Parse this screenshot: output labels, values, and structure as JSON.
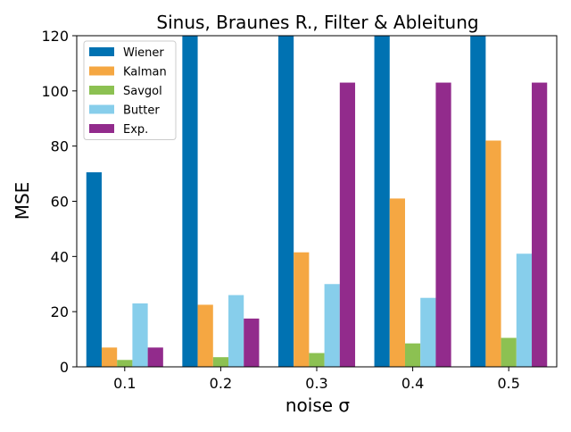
{
  "chart_data": {
    "type": "bar",
    "title": "Sinus, Braunes R., Filter & Ableitung",
    "xlabel": "noise σ",
    "ylabel": "MSE",
    "categories": [
      "0.1",
      "0.2",
      "0.3",
      "0.4",
      "0.5"
    ],
    "ylim": [
      0,
      120
    ],
    "yticks": [
      "0",
      "20",
      "40",
      "60",
      "80",
      "100",
      "120"
    ],
    "grid": false,
    "legend_position": "top-left",
    "series": [
      {
        "name": "Wiener",
        "color": "#0072B2",
        "values": [
          70.5,
          120,
          120,
          120,
          120
        ]
      },
      {
        "name": "Kalman",
        "color": "#F5A742",
        "values": [
          7,
          22.5,
          41.5,
          61,
          82
        ]
      },
      {
        "name": "Savgol",
        "color": "#8CC152",
        "values": [
          2.5,
          3.5,
          5,
          8.5,
          10.5
        ]
      },
      {
        "name": "Butter",
        "color": "#87CEEB",
        "values": [
          23,
          26,
          30,
          25,
          41
        ]
      },
      {
        "name": "Exp.",
        "color": "#922B8C",
        "values": [
          7,
          17.5,
          103,
          103,
          103
        ]
      }
    ]
  }
}
